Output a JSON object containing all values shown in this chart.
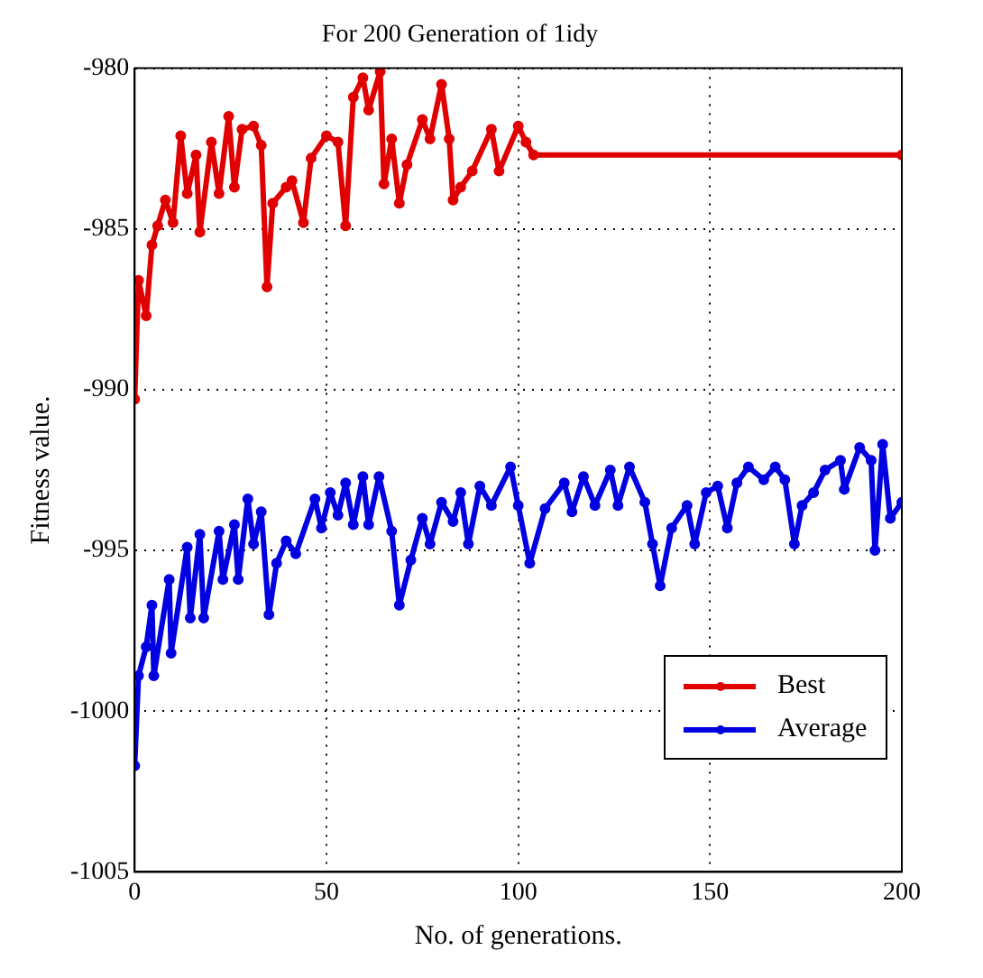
{
  "chart_data": {
    "type": "line",
    "title": "For 200 Generation of 1idy",
    "xlabel": "No. of generations.",
    "ylabel": "Fitness value.",
    "xlim": [
      0,
      200
    ],
    "xticks": [
      0,
      50,
      100,
      150,
      200
    ],
    "ylim": [
      -1005,
      -980
    ],
    "yticks": [
      -1005,
      -1000,
      -995,
      -990,
      -985,
      -980
    ],
    "grid": true,
    "legend": "bottom right",
    "marker": "circle",
    "line_style": "solid",
    "series": [
      {
        "name": "Best",
        "color": "#e00000",
        "x": [
          0,
          1,
          3,
          4.5,
          6,
          8,
          10,
          12,
          13.7,
          16,
          17,
          20,
          22,
          24.5,
          26,
          28,
          31,
          33,
          34.5,
          36,
          39.5,
          41,
          44,
          46,
          50,
          53,
          55,
          57,
          59.5,
          61,
          64,
          65,
          67,
          69,
          71,
          75,
          77,
          80,
          82,
          83,
          85,
          88,
          93,
          95,
          100,
          102,
          104,
          200
        ],
        "values": [
          -990.3,
          -986.6,
          -987.7,
          -985.5,
          -984.9,
          -984.1,
          -984.8,
          -982.1,
          -983.9,
          -982.7,
          -985.1,
          -982.3,
          -983.9,
          -981.5,
          -983.7,
          -981.9,
          -981.8,
          -982.4,
          -986.8,
          -984.2,
          -983.7,
          -983.5,
          -984.8,
          -982.8,
          -982.1,
          -982.3,
          -984.9,
          -980.9,
          -980.3,
          -981.3,
          -980.1,
          -983.6,
          -982.2,
          -984.2,
          -983.0,
          -981.6,
          -982.2,
          -980.5,
          -982.2,
          -984.1,
          -983.7,
          -983.2,
          -981.9,
          -983.2,
          -981.8,
          -982.3,
          -982.7,
          -982.7
        ]
      },
      {
        "name": "Average",
        "color": "#0000e0",
        "x": [
          0,
          1,
          3,
          4.5,
          5,
          9,
          9.5,
          13.7,
          14.5,
          17,
          18,
          22,
          23,
          26,
          27,
          29.5,
          31,
          33,
          35,
          37,
          39.5,
          42,
          47,
          48.7,
          51,
          53,
          55,
          57,
          59.5,
          61,
          63.7,
          67,
          69,
          72,
          75,
          77,
          80,
          83,
          85,
          87,
          90,
          93,
          98,
          100,
          103,
          107,
          112,
          114,
          117,
          120,
          124,
          126,
          129,
          133,
          135,
          137,
          140,
          144,
          146,
          149,
          152,
          154.5,
          157,
          160,
          164,
          167,
          169.5,
          172,
          174,
          177,
          180,
          184,
          185,
          189,
          192,
          193,
          195,
          197,
          200
        ],
        "values": [
          -1001.7,
          -998.9,
          -998.0,
          -996.7,
          -998.9,
          -995.9,
          -998.2,
          -994.9,
          -997.1,
          -994.5,
          -997.1,
          -994.4,
          -995.9,
          -994.2,
          -995.9,
          -993.4,
          -994.8,
          -993.8,
          -997.0,
          -995.4,
          -994.7,
          -995.1,
          -993.4,
          -994.3,
          -993.2,
          -993.9,
          -992.9,
          -994.2,
          -992.7,
          -994.2,
          -992.7,
          -994.4,
          -996.7,
          -995.3,
          -994.0,
          -994.8,
          -993.5,
          -994.1,
          -993.2,
          -994.8,
          -993.0,
          -993.6,
          -992.4,
          -993.6,
          -995.4,
          -993.7,
          -992.9,
          -993.8,
          -992.7,
          -993.6,
          -992.5,
          -993.6,
          -992.4,
          -993.5,
          -994.8,
          -996.1,
          -994.3,
          -993.6,
          -994.8,
          -993.2,
          -993.0,
          -994.3,
          -992.9,
          -992.4,
          -992.8,
          -992.4,
          -992.8,
          -994.8,
          -993.6,
          -993.2,
          -992.5,
          -992.2,
          -993.1,
          -991.8,
          -992.2,
          -995.0,
          -991.7,
          -994.0,
          -993.5
        ]
      }
    ]
  }
}
